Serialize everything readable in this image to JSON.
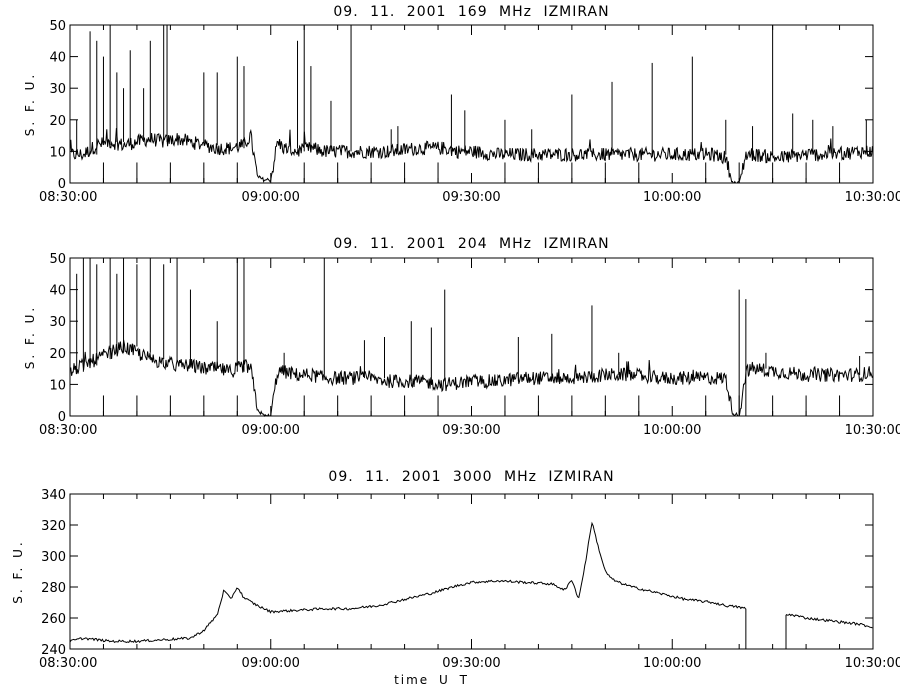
{
  "chart_data": [
    {
      "type": "line",
      "title": "09. 11. 2001 169 MHz IZMIRAN",
      "ylabel": "S. F. U.",
      "xlabel": "",
      "xlim": [
        "08:30:00",
        "10:30:00"
      ],
      "ylim": [
        0,
        50
      ],
      "yticks": [
        0,
        10,
        20,
        30,
        40,
        50
      ],
      "xticks": [
        "08:30:00",
        "09:00:00",
        "09:30:00",
        "10:00:00",
        "10:30:00"
      ],
      "marker_minutes": [
        5,
        10,
        15,
        20,
        25,
        35,
        40,
        45,
        50,
        55,
        65,
        70,
        75,
        80,
        85,
        95,
        100,
        105,
        110,
        115
      ],
      "grid": false,
      "series": [
        {
          "x": [
            "08:30:00",
            "08:32:00",
            "08:34:00",
            "08:36:00",
            "08:38:00",
            "08:40:00",
            "08:42:00",
            "08:44:00",
            "08:46:00",
            "08:48:00",
            "08:50:00",
            "08:52:00",
            "08:54:00",
            "08:56:00",
            "08:57:00",
            "08:58:00",
            "08:59:00",
            "09:00:00",
            "09:01:00",
            "09:02:00",
            "09:04:00",
            "09:06:00",
            "09:08:00",
            "09:10:00",
            "09:14:00",
            "09:18:00",
            "09:22:00",
            "09:26:00",
            "09:28:00",
            "09:30:00",
            "09:34:00",
            "09:38:00",
            "09:42:00",
            "09:46:00",
            "09:50:00",
            "09:54:00",
            "09:58:00",
            "10:02:00",
            "10:06:00",
            "10:08:00",
            "10:09:00",
            "10:10:00",
            "10:11:00",
            "10:12:00",
            "10:16:00",
            "10:20:00",
            "10:24:00",
            "10:28:00",
            "10:30:00"
          ],
          "values": [
            9,
            9,
            12,
            13,
            12,
            13,
            14,
            13,
            14,
            13,
            12,
            11,
            11,
            12,
            15,
            2,
            1,
            1,
            13,
            11,
            10,
            11,
            10,
            10,
            10,
            10,
            11,
            11,
            10,
            10,
            9,
            9,
            9,
            9,
            9,
            9,
            9,
            9,
            9,
            8,
            0,
            0,
            9,
            9,
            8,
            9,
            9,
            10,
            10
          ]
        }
      ],
      "spikes": [
        {
          "x": "08:31:00",
          "peak": 20
        },
        {
          "x": "08:33:00",
          "peak": 48
        },
        {
          "x": "08:34:00",
          "peak": 45
        },
        {
          "x": "08:35:00",
          "peak": 40
        },
        {
          "x": "08:36:00",
          "peak": 50
        },
        {
          "x": "08:37:00",
          "peak": 35
        },
        {
          "x": "08:38:00",
          "peak": 30
        },
        {
          "x": "08:39:00",
          "peak": 42
        },
        {
          "x": "08:41:00",
          "peak": 30
        },
        {
          "x": "08:42:00",
          "peak": 45
        },
        {
          "x": "08:44:00",
          "peak": 50
        },
        {
          "x": "08:44:30",
          "peak": 50
        },
        {
          "x": "08:50:00",
          "peak": 35
        },
        {
          "x": "08:52:00",
          "peak": 35
        },
        {
          "x": "08:55:00",
          "peak": 40
        },
        {
          "x": "08:56:00",
          "peak": 37
        },
        {
          "x": "09:04:00",
          "peak": 45
        },
        {
          "x": "09:05:00",
          "peak": 50
        },
        {
          "x": "09:06:00",
          "peak": 37
        },
        {
          "x": "09:09:00",
          "peak": 26
        },
        {
          "x": "09:12:00",
          "peak": 50
        },
        {
          "x": "09:18:00",
          "peak": 17
        },
        {
          "x": "09:19:00",
          "peak": 18
        },
        {
          "x": "09:27:00",
          "peak": 28
        },
        {
          "x": "09:29:00",
          "peak": 23
        },
        {
          "x": "09:35:00",
          "peak": 20
        },
        {
          "x": "09:39:00",
          "peak": 17
        },
        {
          "x": "09:45:00",
          "peak": 28
        },
        {
          "x": "09:51:00",
          "peak": 32
        },
        {
          "x": "09:57:00",
          "peak": 38
        },
        {
          "x": "10:03:00",
          "peak": 40
        },
        {
          "x": "10:08:00",
          "peak": 20
        },
        {
          "x": "10:12:00",
          "peak": 18
        },
        {
          "x": "10:15:00",
          "peak": 50
        },
        {
          "x": "10:18:00",
          "peak": 22
        },
        {
          "x": "10:21:00",
          "peak": 20
        },
        {
          "x": "10:24:00",
          "peak": 18
        },
        {
          "x": "10:29:00",
          "peak": 20
        }
      ]
    },
    {
      "type": "line",
      "title": "09. 11. 2001 204 MHz IZMIRAN",
      "ylabel": "S. F. U.",
      "xlabel": "",
      "xlim": [
        "08:30:00",
        "10:30:00"
      ],
      "ylim": [
        0,
        50
      ],
      "yticks": [
        0,
        10,
        20,
        30,
        40,
        50
      ],
      "xticks": [
        "08:30:00",
        "09:00:00",
        "09:30:00",
        "10:00:00",
        "10:30:00"
      ],
      "marker_minutes": [
        5,
        10,
        15,
        20,
        25,
        35,
        40,
        45,
        50,
        55,
        65,
        70,
        75,
        80,
        85,
        95,
        100,
        105,
        110,
        115
      ],
      "grid": false,
      "series": [
        {
          "x": [
            "08:30:00",
            "08:32:00",
            "08:34:00",
            "08:36:00",
            "08:38:00",
            "08:40:00",
            "08:42:00",
            "08:44:00",
            "08:46:00",
            "08:48:00",
            "08:50:00",
            "08:52:00",
            "08:54:00",
            "08:56:00",
            "08:57:00",
            "08:58:00",
            "08:59:00",
            "09:00:00",
            "09:01:00",
            "09:02:00",
            "09:04:00",
            "09:06:00",
            "09:08:00",
            "09:10:00",
            "09:14:00",
            "09:18:00",
            "09:22:00",
            "09:26:00",
            "09:30:00",
            "09:34:00",
            "09:38:00",
            "09:42:00",
            "09:46:00",
            "09:50:00",
            "09:54:00",
            "09:58:00",
            "10:02:00",
            "10:06:00",
            "10:08:00",
            "10:09:00",
            "10:10:00",
            "10:11:00",
            "10:12:00",
            "10:16:00",
            "10:20:00",
            "10:24:00",
            "10:28:00",
            "10:30:00"
          ],
          "values": [
            14,
            16,
            18,
            20,
            22,
            20,
            18,
            17,
            16,
            16,
            15,
            15,
            14,
            16,
            15,
            2,
            0,
            0,
            14,
            14,
            13,
            13,
            12,
            12,
            12,
            11,
            11,
            10,
            11,
            11,
            12,
            12,
            12,
            13,
            13,
            12,
            12,
            12,
            12,
            1,
            0,
            14,
            15,
            14,
            13,
            13,
            13,
            14
          ]
        }
      ],
      "spikes": [
        {
          "x": "08:31:00",
          "peak": 45
        },
        {
          "x": "08:32:00",
          "peak": 50
        },
        {
          "x": "08:33:00",
          "peak": 50
        },
        {
          "x": "08:34:00",
          "peak": 48
        },
        {
          "x": "08:36:00",
          "peak": 50
        },
        {
          "x": "08:37:00",
          "peak": 45
        },
        {
          "x": "08:38:00",
          "peak": 50
        },
        {
          "x": "08:40:00",
          "peak": 48
        },
        {
          "x": "08:42:00",
          "peak": 50
        },
        {
          "x": "08:44:00",
          "peak": 48
        },
        {
          "x": "08:46:00",
          "peak": 50
        },
        {
          "x": "08:48:00",
          "peak": 40
        },
        {
          "x": "08:52:00",
          "peak": 30
        },
        {
          "x": "08:55:00",
          "peak": 50
        },
        {
          "x": "08:56:00",
          "peak": 50
        },
        {
          "x": "09:02:00",
          "peak": 20
        },
        {
          "x": "09:08:00",
          "peak": 50
        },
        {
          "x": "09:14:00",
          "peak": 24
        },
        {
          "x": "09:17:00",
          "peak": 25
        },
        {
          "x": "09:21:00",
          "peak": 30
        },
        {
          "x": "09:24:00",
          "peak": 28
        },
        {
          "x": "09:26:00",
          "peak": 40
        },
        {
          "x": "09:37:00",
          "peak": 25
        },
        {
          "x": "09:42:00",
          "peak": 26
        },
        {
          "x": "09:48:00",
          "peak": 35
        },
        {
          "x": "09:52:00",
          "peak": 20
        },
        {
          "x": "10:10:00",
          "peak": 40
        },
        {
          "x": "10:11:00",
          "peak": 37
        },
        {
          "x": "10:14:00",
          "peak": 20
        },
        {
          "x": "10:28:00",
          "peak": 19
        }
      ]
    },
    {
      "type": "line",
      "title": "09. 11. 2001 3000 MHz IZMIRAN",
      "ylabel": "S. F. U.",
      "xlabel": "time U T",
      "xlim": [
        "08:30:00",
        "10:30:00"
      ],
      "ylim": [
        240,
        340
      ],
      "yticks": [
        240,
        260,
        280,
        300,
        320,
        340
      ],
      "xticks": [
        "08:30:00",
        "09:00:00",
        "09:30:00",
        "10:00:00",
        "10:30:00"
      ],
      "marker_minutes": [],
      "grid": false,
      "series": [
        {
          "x": [
            "08:30:00",
            "08:32:00",
            "08:34:00",
            "08:36:00",
            "08:40:00",
            "08:44:00",
            "08:48:00",
            "08:50:00",
            "08:52:00",
            "08:53:00",
            "08:54:00",
            "08:55:00",
            "08:56:00",
            "08:58:00",
            "09:00:00",
            "09:04:00",
            "09:08:00",
            "09:12:00",
            "09:16:00",
            "09:20:00",
            "09:24:00",
            "09:28:00",
            "09:30:00",
            "09:34:00",
            "09:38:00",
            "09:42:00",
            "09:44:00",
            "09:45:00",
            "09:46:00",
            "09:47:00",
            "09:48:00",
            "09:49:00",
            "09:50:00",
            "09:51:00",
            "09:52:00",
            "09:54:00",
            "09:58:00",
            "10:02:00",
            "10:06:00",
            "10:08:00",
            "10:10:00",
            "10:11:00"
          ],
          "values": [
            245,
            247,
            246,
            245,
            245,
            246,
            247,
            252,
            262,
            278,
            272,
            280,
            273,
            268,
            264,
            265,
            266,
            266,
            268,
            272,
            276,
            281,
            283,
            284,
            283,
            282,
            278,
            285,
            272,
            295,
            322,
            305,
            290,
            285,
            283,
            280,
            276,
            272,
            270,
            268,
            267,
            266
          ]
        },
        {
          "x": [
            "10:17:00",
            "10:18:00",
            "10:20:00",
            "10:24:00",
            "10:28:00",
            "10:30:00"
          ],
          "values": [
            262,
            262,
            260,
            258,
            256,
            254
          ]
        }
      ],
      "drop_lines": [
        {
          "x": "10:11:00",
          "from": 266,
          "to": 240
        },
        {
          "x": "10:17:00",
          "from": 240,
          "to": 262
        }
      ],
      "spikes": []
    }
  ]
}
